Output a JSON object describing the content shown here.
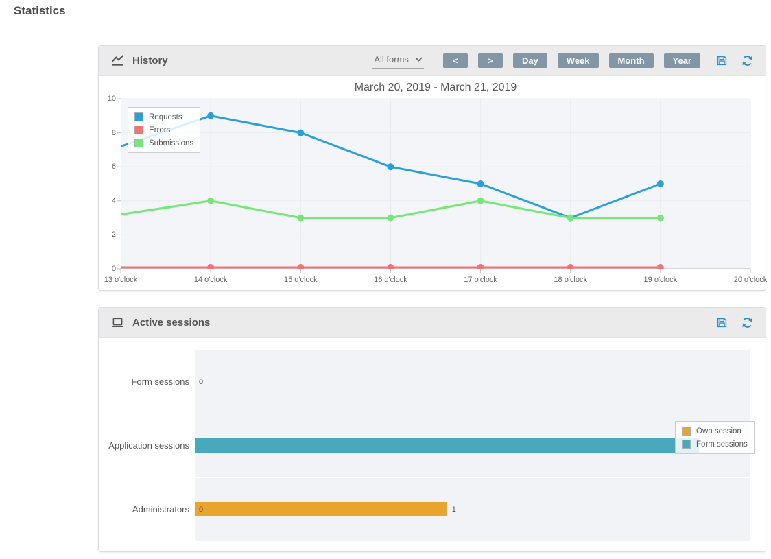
{
  "page": {
    "title": "Statistics"
  },
  "colors": {
    "accent_button": "#8296a5",
    "icon_accent": "#2f8dc3",
    "header_bg": "#ebebeb"
  },
  "history": {
    "panel_title": "History",
    "filter": {
      "selected": "All forms"
    },
    "toolbar": {
      "prev": "<",
      "next": ">",
      "day": "Day",
      "week": "Week",
      "month": "Month",
      "year": "Year"
    },
    "chart_data": {
      "type": "line",
      "title": "March 20, 2019 - March 21, 2019",
      "x_categories": [
        "13 o'clock",
        "14 o'clock",
        "15 o'clock",
        "16 o'clock",
        "17 o'clock",
        "18 o'clock",
        "19 o'clock",
        "20 o'clock"
      ],
      "ylim": [
        0,
        10
      ],
      "yticks": [
        0,
        2,
        4,
        6,
        8,
        10
      ],
      "grid": true,
      "legend_position": "top-left",
      "series": [
        {
          "name": "Requests",
          "color": "#29a0da",
          "values": [
            7.2,
            9,
            8,
            6,
            5,
            3,
            5
          ]
        },
        {
          "name": "Errors",
          "color": "#f87171",
          "values": [
            0,
            0,
            0,
            0,
            0,
            0,
            0
          ]
        },
        {
          "name": "Submissions",
          "color": "#74e874",
          "values": [
            3.2,
            4,
            3,
            3,
            4,
            3,
            3
          ]
        }
      ]
    }
  },
  "sessions": {
    "panel_title": "Active sessions",
    "chart_data": {
      "type": "bar",
      "orientation": "horizontal",
      "categories": [
        "Form sessions",
        "Application sessions",
        "Administrators"
      ],
      "xlim": [
        0,
        2.2
      ],
      "legend_position": "right",
      "series": [
        {
          "name": "Own session",
          "color": "#e8a42d",
          "values": [
            0,
            0,
            1
          ]
        },
        {
          "name": "Form sessions",
          "color": "#48a9bc",
          "values": [
            0,
            2,
            0
          ]
        }
      ],
      "value_labels": [
        {
          "category_index": 0,
          "text": "0",
          "position": "start"
        },
        {
          "category_index": 2,
          "text": "0",
          "position": "start"
        },
        {
          "category_index": 2,
          "text": "1",
          "position": "end"
        }
      ]
    }
  }
}
